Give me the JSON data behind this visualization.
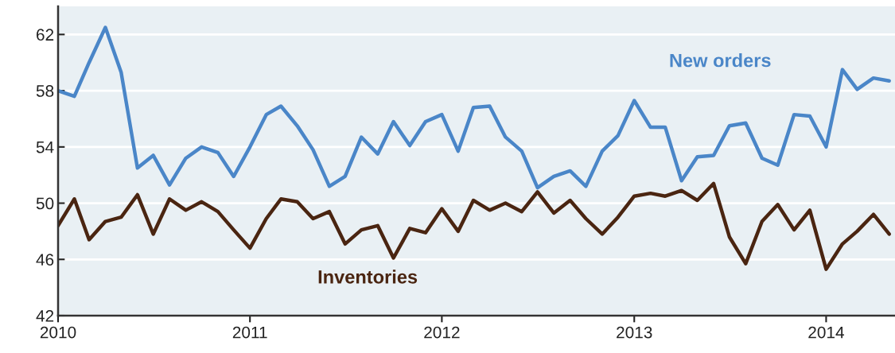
{
  "chart_data": {
    "type": "line",
    "x": [
      "2010-01",
      "2010-02",
      "2010-03",
      "2010-04",
      "2010-05",
      "2010-06",
      "2010-07",
      "2010-08",
      "2010-09",
      "2010-10",
      "2010-11",
      "2010-12",
      "2011-01",
      "2011-02",
      "2011-03",
      "2011-04",
      "2011-05",
      "2011-06",
      "2011-07",
      "2011-08",
      "2011-09",
      "2011-10",
      "2011-11",
      "2011-12",
      "2012-01",
      "2012-02",
      "2012-03",
      "2012-04",
      "2012-05",
      "2012-06",
      "2012-07",
      "2012-08",
      "2012-09",
      "2012-10",
      "2012-11",
      "2012-12",
      "2013-01",
      "2013-02",
      "2013-03",
      "2013-04",
      "2013-05",
      "2013-06",
      "2013-07",
      "2013-08",
      "2013-09",
      "2013-10",
      "2013-11",
      "2013-12",
      "2014-01",
      "2014-02",
      "2014-03",
      "2014-04",
      "2014-05"
    ],
    "series": [
      {
        "name": "New orders",
        "color": "#4a86c8",
        "values": [
          58.0,
          57.6,
          60.0,
          62.5,
          59.3,
          52.5,
          53.4,
          51.3,
          53.2,
          54.0,
          53.6,
          51.9,
          54.0,
          56.3,
          56.9,
          55.5,
          53.8,
          51.2,
          51.9,
          54.7,
          53.5,
          55.8,
          54.1,
          55.8,
          56.3,
          53.7,
          56.8,
          56.9,
          54.7,
          53.7,
          51.1,
          51.9,
          52.3,
          51.2,
          53.7,
          54.8,
          57.3,
          55.4,
          55.4,
          51.6,
          53.3,
          53.4,
          55.5,
          55.7,
          53.2,
          52.7,
          56.3,
          56.2,
          54.0,
          59.5,
          58.1,
          58.9,
          58.7
        ]
      },
      {
        "name": "Inventories",
        "color": "#4a2511",
        "values": [
          48.4,
          50.3,
          47.4,
          48.7,
          49.0,
          50.6,
          47.8,
          50.3,
          49.5,
          50.1,
          49.4,
          48.1,
          46.8,
          48.9,
          50.3,
          50.1,
          48.9,
          49.4,
          47.1,
          48.1,
          48.4,
          46.1,
          48.2,
          47.9,
          49.6,
          48.0,
          50.2,
          49.5,
          50.0,
          49.4,
          50.8,
          49.3,
          50.2,
          48.9,
          47.8,
          49.0,
          50.5,
          50.7,
          50.5,
          50.9,
          50.2,
          51.4,
          47.6,
          45.7,
          48.7,
          49.9,
          48.1,
          49.5,
          45.3,
          47.1,
          48.0,
          49.2,
          47.8
        ]
      }
    ],
    "xlim": [
      "2010-01-01",
      "2014-05-12"
    ],
    "xticks": [
      "2010",
      "2011",
      "2012",
      "2013",
      "2014"
    ],
    "ylim": [
      42,
      64
    ],
    "yticks": [
      42,
      46,
      50,
      54,
      58,
      62
    ],
    "grid": "y",
    "legend": false,
    "line_style": "solid",
    "marker": "none"
  }
}
